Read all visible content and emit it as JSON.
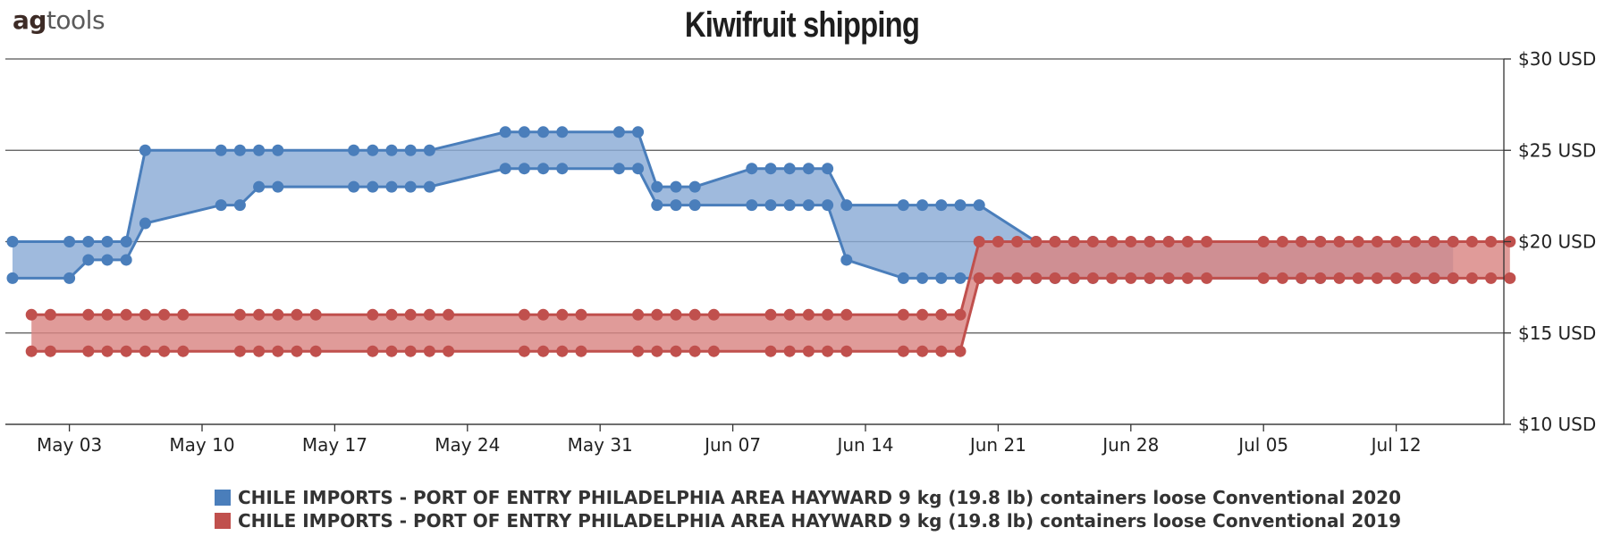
{
  "logo": {
    "part1": "ag",
    "part2": "tools"
  },
  "chart_data": {
    "type": "area",
    "title": "Kiwifruit shipping",
    "xlabel": "",
    "ylabel": "",
    "x_ticks": [
      "May 03",
      "May 10",
      "May 17",
      "May 24",
      "May 31",
      "Jun 07",
      "Jun 14",
      "Jun 21",
      "Jun 28",
      "Jul 05",
      "Jul 12"
    ],
    "y_ticks": [
      "$10 USD",
      "$15 USD",
      "$20 USD",
      "$25 USD",
      "$30 USD"
    ],
    "ylim": [
      10,
      30
    ],
    "x_start": "2020-04-30",
    "y_axis_side": "right",
    "grid": true,
    "legend_position": "bottom",
    "series": [
      {
        "name": "CHILE IMPORTS - PORT OF ENTRY PHILADELPHIA AREA  HAYWARD  9 kg (19.8 lb) containers loose Conventional 2020",
        "color": "#4a7ebb",
        "fill": "#8aabd6",
        "high": [
          [
            "2020-04-30",
            20
          ],
          [
            "2020-05-03",
            20
          ],
          [
            "2020-05-04",
            20
          ],
          [
            "2020-05-05",
            20
          ],
          [
            "2020-05-06",
            20
          ],
          [
            "2020-05-07",
            25
          ],
          [
            "2020-05-11",
            25
          ],
          [
            "2020-05-12",
            25
          ],
          [
            "2020-05-13",
            25
          ],
          [
            "2020-05-14",
            25
          ],
          [
            "2020-05-18",
            25
          ],
          [
            "2020-05-19",
            25
          ],
          [
            "2020-05-20",
            25
          ],
          [
            "2020-05-21",
            25
          ],
          [
            "2020-05-22",
            25
          ],
          [
            "2020-05-26",
            26
          ],
          [
            "2020-05-27",
            26
          ],
          [
            "2020-05-28",
            26
          ],
          [
            "2020-05-29",
            26
          ],
          [
            "2020-06-01",
            26
          ],
          [
            "2020-06-02",
            26
          ],
          [
            "2020-06-03",
            23
          ],
          [
            "2020-06-04",
            23
          ],
          [
            "2020-06-05",
            23
          ],
          [
            "2020-06-08",
            24
          ],
          [
            "2020-06-09",
            24
          ],
          [
            "2020-06-10",
            24
          ],
          [
            "2020-06-11",
            24
          ],
          [
            "2020-06-12",
            24
          ],
          [
            "2020-06-13",
            22
          ],
          [
            "2020-06-16",
            22
          ],
          [
            "2020-06-17",
            22
          ],
          [
            "2020-06-18",
            22
          ],
          [
            "2020-06-19",
            22
          ],
          [
            "2020-06-20",
            22
          ],
          [
            "2020-06-23",
            20
          ],
          [
            "2020-06-24",
            20
          ],
          [
            "2020-06-25",
            20
          ],
          [
            "2020-06-26",
            20
          ],
          [
            "2020-06-29",
            20
          ],
          [
            "2020-06-30",
            20
          ],
          [
            "2020-07-07",
            20
          ],
          [
            "2020-07-08",
            20
          ],
          [
            "2020-07-14",
            20
          ],
          [
            "2020-07-15",
            20
          ]
        ],
        "low": [
          [
            "2020-04-30",
            18
          ],
          [
            "2020-05-03",
            18
          ],
          [
            "2020-05-04",
            19
          ],
          [
            "2020-05-05",
            19
          ],
          [
            "2020-05-06",
            19
          ],
          [
            "2020-05-07",
            21
          ],
          [
            "2020-05-11",
            22
          ],
          [
            "2020-05-12",
            22
          ],
          [
            "2020-05-13",
            23
          ],
          [
            "2020-05-14",
            23
          ],
          [
            "2020-05-18",
            23
          ],
          [
            "2020-05-19",
            23
          ],
          [
            "2020-05-20",
            23
          ],
          [
            "2020-05-21",
            23
          ],
          [
            "2020-05-22",
            23
          ],
          [
            "2020-05-26",
            24
          ],
          [
            "2020-05-27",
            24
          ],
          [
            "2020-05-28",
            24
          ],
          [
            "2020-05-29",
            24
          ],
          [
            "2020-06-01",
            24
          ],
          [
            "2020-06-02",
            24
          ],
          [
            "2020-06-03",
            22
          ],
          [
            "2020-06-04",
            22
          ],
          [
            "2020-06-05",
            22
          ],
          [
            "2020-06-08",
            22
          ],
          [
            "2020-06-09",
            22
          ],
          [
            "2020-06-10",
            22
          ],
          [
            "2020-06-11",
            22
          ],
          [
            "2020-06-12",
            22
          ],
          [
            "2020-06-13",
            19
          ],
          [
            "2020-06-16",
            18
          ],
          [
            "2020-06-17",
            18
          ],
          [
            "2020-06-18",
            18
          ],
          [
            "2020-06-19",
            18
          ],
          [
            "2020-06-20",
            18
          ],
          [
            "2020-06-23",
            18
          ],
          [
            "2020-06-24",
            18
          ],
          [
            "2020-06-25",
            18
          ],
          [
            "2020-06-26",
            18
          ],
          [
            "2020-06-29",
            18
          ],
          [
            "2020-06-30",
            18
          ],
          [
            "2020-07-07",
            18
          ],
          [
            "2020-07-08",
            18
          ],
          [
            "2020-07-14",
            18
          ],
          [
            "2020-07-15",
            18
          ]
        ]
      },
      {
        "name": "CHILE IMPORTS - PORT OF ENTRY PHILADELPHIA AREA  HAYWARD  9 kg (19.8 lb) containers loose Conventional 2019",
        "color": "#c0504d",
        "fill": "#d98583",
        "high": [
          [
            "2020-05-01",
            16
          ],
          [
            "2020-05-02",
            16
          ],
          [
            "2020-05-04",
            16
          ],
          [
            "2020-05-05",
            16
          ],
          [
            "2020-05-06",
            16
          ],
          [
            "2020-05-07",
            16
          ],
          [
            "2020-05-08",
            16
          ],
          [
            "2020-05-09",
            16
          ],
          [
            "2020-05-12",
            16
          ],
          [
            "2020-05-13",
            16
          ],
          [
            "2020-05-14",
            16
          ],
          [
            "2020-05-15",
            16
          ],
          [
            "2020-05-16",
            16
          ],
          [
            "2020-05-19",
            16
          ],
          [
            "2020-05-20",
            16
          ],
          [
            "2020-05-21",
            16
          ],
          [
            "2020-05-22",
            16
          ],
          [
            "2020-05-23",
            16
          ],
          [
            "2020-05-27",
            16
          ],
          [
            "2020-05-28",
            16
          ],
          [
            "2020-05-29",
            16
          ],
          [
            "2020-05-30",
            16
          ],
          [
            "2020-06-02",
            16
          ],
          [
            "2020-06-03",
            16
          ],
          [
            "2020-06-04",
            16
          ],
          [
            "2020-06-05",
            16
          ],
          [
            "2020-06-06",
            16
          ],
          [
            "2020-06-09",
            16
          ],
          [
            "2020-06-10",
            16
          ],
          [
            "2020-06-11",
            16
          ],
          [
            "2020-06-12",
            16
          ],
          [
            "2020-06-13",
            16
          ],
          [
            "2020-06-16",
            16
          ],
          [
            "2020-06-17",
            16
          ],
          [
            "2020-06-18",
            16
          ],
          [
            "2020-06-19",
            16
          ],
          [
            "2020-06-20",
            20
          ],
          [
            "2020-06-21",
            20
          ],
          [
            "2020-06-22",
            20
          ],
          [
            "2020-06-23",
            20
          ],
          [
            "2020-06-24",
            20
          ],
          [
            "2020-06-25",
            20
          ],
          [
            "2020-06-26",
            20
          ],
          [
            "2020-06-27",
            20
          ],
          [
            "2020-06-28",
            20
          ],
          [
            "2020-06-29",
            20
          ],
          [
            "2020-06-30",
            20
          ],
          [
            "2020-07-01",
            20
          ],
          [
            "2020-07-02",
            20
          ],
          [
            "2020-07-05",
            20
          ],
          [
            "2020-07-06",
            20
          ],
          [
            "2020-07-07",
            20
          ],
          [
            "2020-07-08",
            20
          ],
          [
            "2020-07-09",
            20
          ],
          [
            "2020-07-10",
            20
          ],
          [
            "2020-07-11",
            20
          ],
          [
            "2020-07-12",
            20
          ],
          [
            "2020-07-13",
            20
          ],
          [
            "2020-07-14",
            20
          ],
          [
            "2020-07-15",
            20
          ],
          [
            "2020-07-16",
            20
          ],
          [
            "2020-07-17",
            20
          ],
          [
            "2020-07-18",
            20
          ]
        ],
        "low": [
          [
            "2020-05-01",
            14
          ],
          [
            "2020-05-02",
            14
          ],
          [
            "2020-05-04",
            14
          ],
          [
            "2020-05-05",
            14
          ],
          [
            "2020-05-06",
            14
          ],
          [
            "2020-05-07",
            14
          ],
          [
            "2020-05-08",
            14
          ],
          [
            "2020-05-09",
            14
          ],
          [
            "2020-05-12",
            14
          ],
          [
            "2020-05-13",
            14
          ],
          [
            "2020-05-14",
            14
          ],
          [
            "2020-05-15",
            14
          ],
          [
            "2020-05-16",
            14
          ],
          [
            "2020-05-19",
            14
          ],
          [
            "2020-05-20",
            14
          ],
          [
            "2020-05-21",
            14
          ],
          [
            "2020-05-22",
            14
          ],
          [
            "2020-05-23",
            14
          ],
          [
            "2020-05-27",
            14
          ],
          [
            "2020-05-28",
            14
          ],
          [
            "2020-05-29",
            14
          ],
          [
            "2020-05-30",
            14
          ],
          [
            "2020-06-02",
            14
          ],
          [
            "2020-06-03",
            14
          ],
          [
            "2020-06-04",
            14
          ],
          [
            "2020-06-05",
            14
          ],
          [
            "2020-06-06",
            14
          ],
          [
            "2020-06-09",
            14
          ],
          [
            "2020-06-10",
            14
          ],
          [
            "2020-06-11",
            14
          ],
          [
            "2020-06-12",
            14
          ],
          [
            "2020-06-13",
            14
          ],
          [
            "2020-06-16",
            14
          ],
          [
            "2020-06-17",
            14
          ],
          [
            "2020-06-18",
            14
          ],
          [
            "2020-06-19",
            14
          ],
          [
            "2020-06-20",
            18
          ],
          [
            "2020-06-21",
            18
          ],
          [
            "2020-06-22",
            18
          ],
          [
            "2020-06-23",
            18
          ],
          [
            "2020-06-24",
            18
          ],
          [
            "2020-06-25",
            18
          ],
          [
            "2020-06-26",
            18
          ],
          [
            "2020-06-27",
            18
          ],
          [
            "2020-06-28",
            18
          ],
          [
            "2020-06-29",
            18
          ],
          [
            "2020-06-30",
            18
          ],
          [
            "2020-07-01",
            18
          ],
          [
            "2020-07-02",
            18
          ],
          [
            "2020-07-05",
            18
          ],
          [
            "2020-07-06",
            18
          ],
          [
            "2020-07-07",
            18
          ],
          [
            "2020-07-08",
            18
          ],
          [
            "2020-07-09",
            18
          ],
          [
            "2020-07-10",
            18
          ],
          [
            "2020-07-11",
            18
          ],
          [
            "2020-07-12",
            18
          ],
          [
            "2020-07-13",
            18
          ],
          [
            "2020-07-14",
            18
          ],
          [
            "2020-07-15",
            18
          ],
          [
            "2020-07-16",
            18
          ],
          [
            "2020-07-17",
            18
          ],
          [
            "2020-07-18",
            18
          ]
        ]
      }
    ]
  }
}
